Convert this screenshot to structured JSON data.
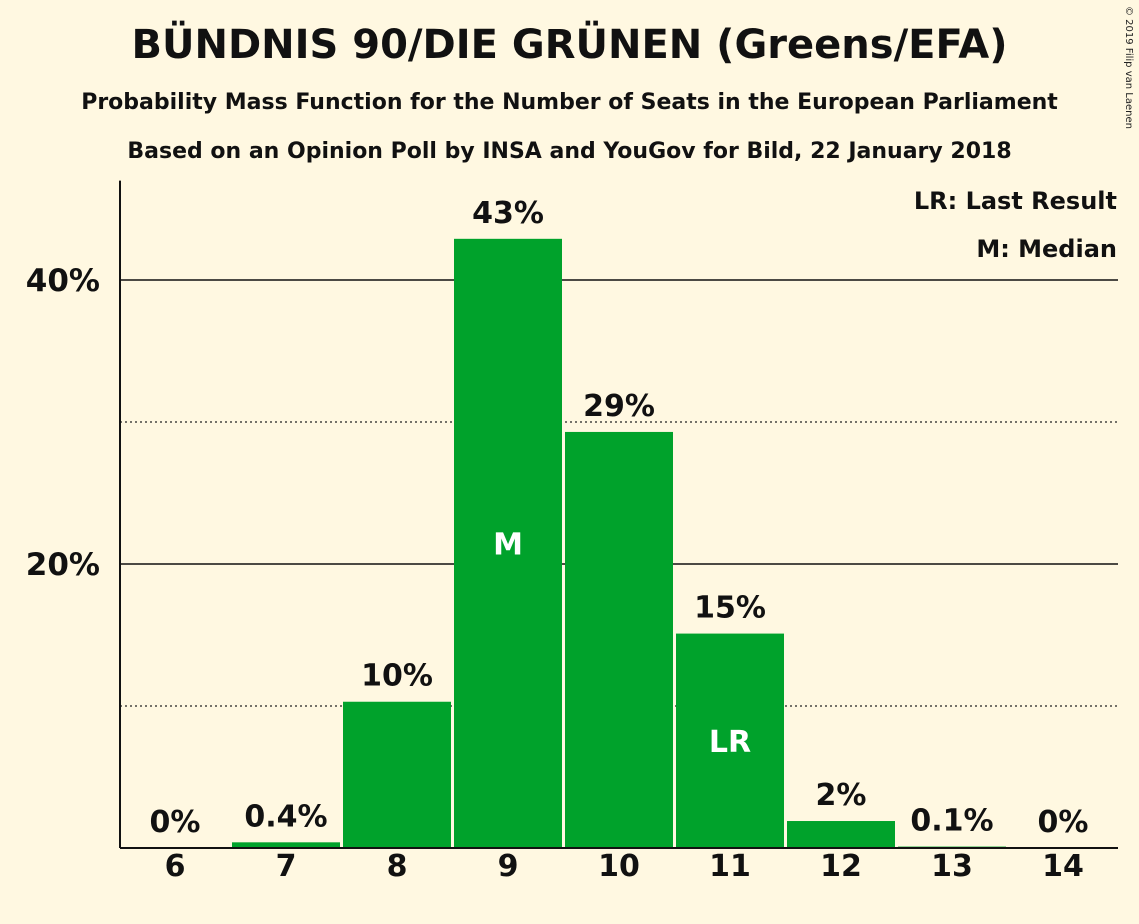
{
  "title": "BÜNDNIS 90/DIE GRÜNEN (Greens/EFA)",
  "subtitle": "Probability Mass Function for the Number of Seats in the European Parliament",
  "subtitle2": "Based on an Opinion Poll by INSA and YouGov for Bild, 22 January 2018",
  "copyright": "© 2019 Filip van Laenen",
  "colors": {
    "bar": "#00a22b",
    "background": "#fff8e1"
  },
  "chart_data": {
    "type": "bar",
    "categories": [
      "6",
      "7",
      "8",
      "9",
      "10",
      "11",
      "12",
      "13",
      "14"
    ],
    "values": [
      0,
      0.4,
      10.3,
      42.9,
      29.3,
      15.1,
      1.9,
      0.1,
      0
    ],
    "value_labels": [
      "0%",
      "0.4%",
      "10%",
      "43%",
      "29%",
      "15%",
      "2%",
      "0.1%",
      "0%"
    ],
    "bar_markers": [
      {
        "category": "9",
        "label": "M"
      },
      {
        "category": "11",
        "label": "LR"
      }
    ],
    "ylim": [
      0,
      47
    ],
    "yticks": [
      {
        "value": 20,
        "label": "20%"
      },
      {
        "value": 40,
        "label": "40%"
      }
    ],
    "minor_gridlines": [
      10,
      30
    ],
    "legend": [
      "LR: Last Result",
      "M: Median"
    ],
    "legend_position": "top-right"
  }
}
